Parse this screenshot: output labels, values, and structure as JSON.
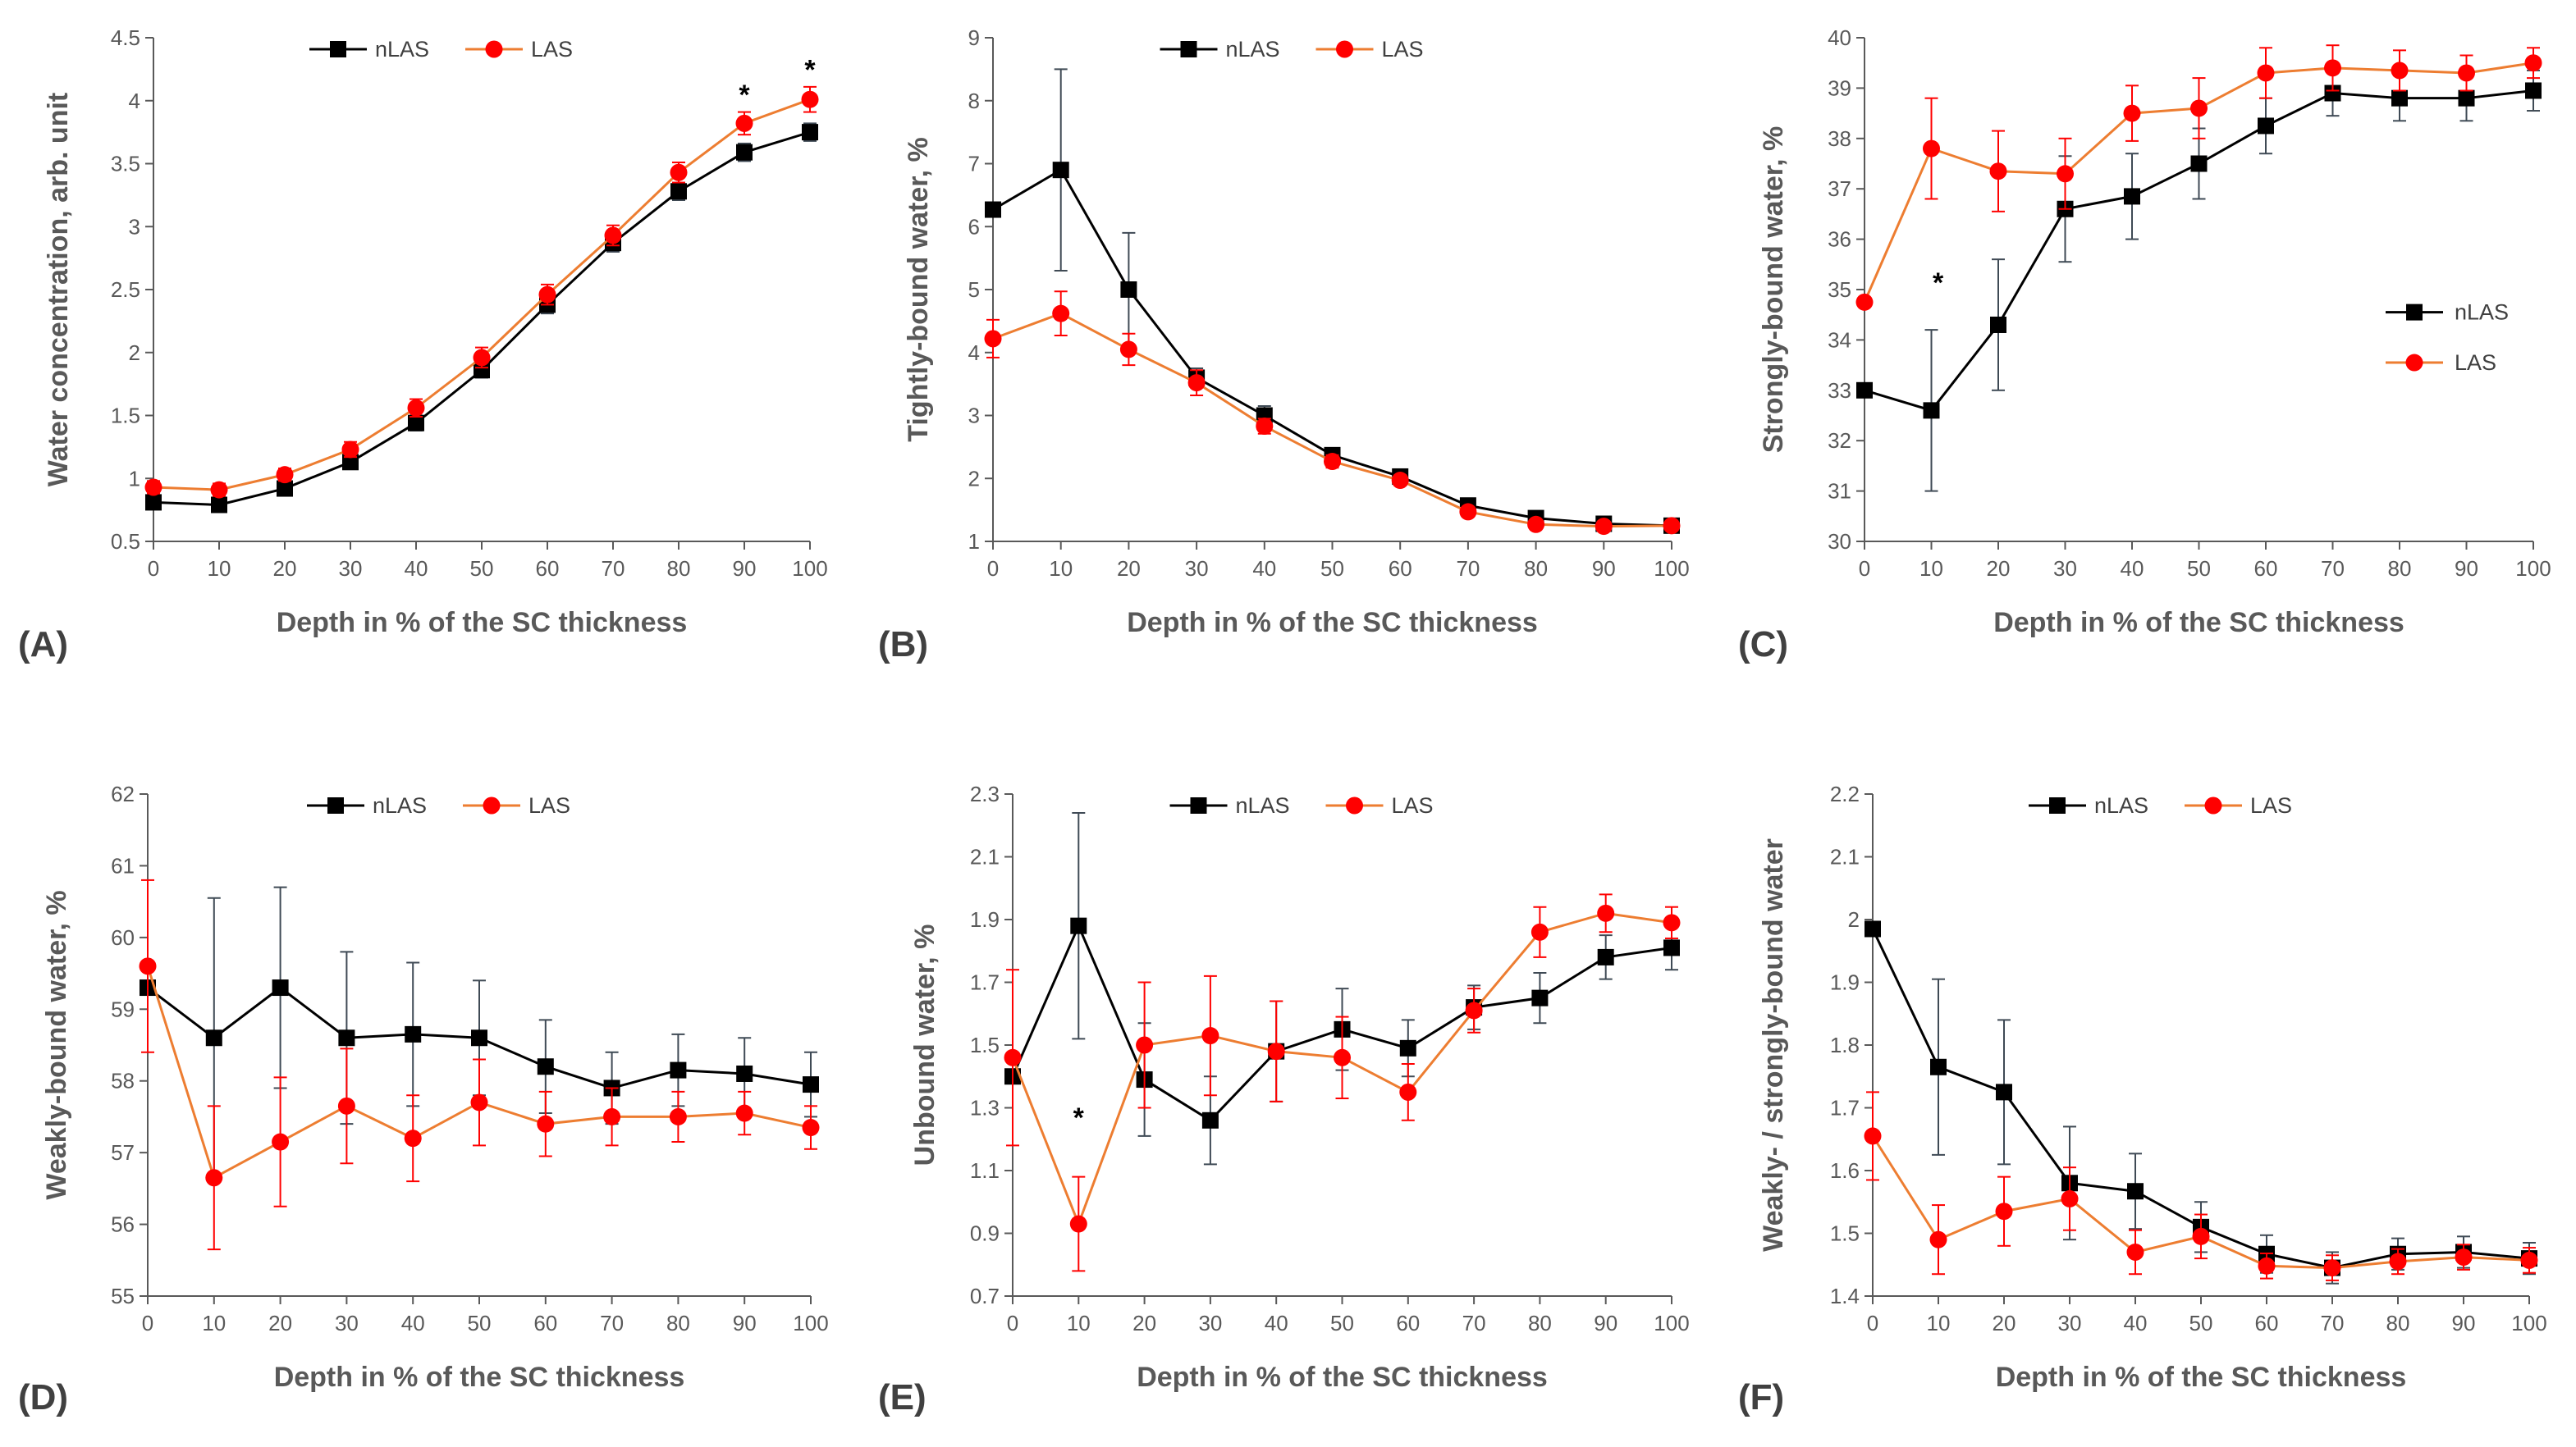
{
  "chart_data": [
    {
      "id": "A",
      "type": "line",
      "panel_label": "(A)",
      "xlabel": "Depth in % of the SC thickness",
      "ylabel": "Water concentration, arb. unit",
      "x": [
        0,
        10,
        20,
        30,
        40,
        50,
        60,
        70,
        80,
        90,
        100
      ],
      "xlim": [
        0,
        100
      ],
      "ylim": [
        0.5,
        4.5
      ],
      "ystep": 0.5,
      "ytick_labels": [
        "0.5",
        "1",
        "1.5",
        "2",
        "2.5",
        "3",
        "3.5",
        "4",
        "4.5"
      ],
      "legend": "top-center",
      "series": [
        {
          "name": "nLAS",
          "values": [
            0.81,
            0.79,
            0.92,
            1.13,
            1.44,
            1.86,
            2.38,
            2.87,
            3.28,
            3.59,
            3.75
          ],
          "errors": [
            0.05,
            0.05,
            0.05,
            0.05,
            0.06,
            0.06,
            0.07,
            0.07,
            0.07,
            0.07,
            0.07
          ]
        },
        {
          "name": "LAS",
          "values": [
            0.93,
            0.91,
            1.03,
            1.23,
            1.56,
            1.96,
            2.46,
            2.93,
            3.43,
            3.82,
            4.01
          ],
          "errors": [
            0.05,
            0.05,
            0.05,
            0.06,
            0.07,
            0.08,
            0.08,
            0.08,
            0.08,
            0.09,
            0.1
          ]
        }
      ],
      "annotations": [
        {
          "x": 90,
          "y": 4.05,
          "text": "*"
        },
        {
          "x": 100,
          "y": 4.25,
          "text": "*"
        }
      ]
    },
    {
      "id": "B",
      "type": "line",
      "panel_label": "(B)",
      "xlabel": "Depth in % of the SC thickness",
      "ylabel": "Tightly-bound water, %",
      "x": [
        0,
        10,
        20,
        30,
        40,
        50,
        60,
        70,
        80,
        90,
        100
      ],
      "xlim": [
        0,
        100
      ],
      "ylim": [
        1,
        9
      ],
      "ystep": 1,
      "ytick_labels": [
        "1",
        "2",
        "3",
        "4",
        "5",
        "6",
        "7",
        "8",
        "9"
      ],
      "legend": "top-center",
      "series": [
        {
          "name": "nLAS",
          "values": [
            6.27,
            6.9,
            5.0,
            3.6,
            3.0,
            2.37,
            2.03,
            1.57,
            1.37,
            1.28,
            1.25
          ],
          "errors": [
            0,
            1.6,
            0.9,
            0.15,
            0.15,
            0.1,
            0.08,
            0.05,
            0.05,
            0.03,
            0.03
          ]
        },
        {
          "name": "LAS",
          "values": [
            4.22,
            4.62,
            4.05,
            3.52,
            2.83,
            2.27,
            1.97,
            1.47,
            1.27,
            1.24,
            1.25
          ],
          "errors": [
            0.3,
            0.35,
            0.25,
            0.2,
            0.12,
            0.1,
            0.08,
            0.05,
            0.04,
            0.03,
            0.03
          ]
        }
      ],
      "annotations": []
    },
    {
      "id": "C",
      "type": "line",
      "panel_label": "(C)",
      "xlabel": "Depth in % of the SC thickness",
      "ylabel": "Strongly-bound water, %",
      "x": [
        0,
        10,
        20,
        30,
        40,
        50,
        60,
        70,
        80,
        90,
        100
      ],
      "xlim": [
        0,
        100
      ],
      "ylim": [
        30,
        40
      ],
      "ystep": 1,
      "ytick_labels": [
        "30",
        "31",
        "32",
        "33",
        "34",
        "35",
        "36",
        "37",
        "38",
        "39",
        "40"
      ],
      "legend": "right",
      "series": [
        {
          "name": "nLAS",
          "values": [
            33.0,
            32.6,
            34.3,
            36.6,
            36.85,
            37.5,
            38.25,
            38.9,
            38.8,
            38.8,
            38.95
          ],
          "errors": [
            0,
            1.6,
            1.3,
            1.05,
            0.85,
            0.7,
            0.55,
            0.45,
            0.45,
            0.45,
            0.4
          ]
        },
        {
          "name": "LAS",
          "values": [
            34.75,
            37.8,
            37.35,
            37.3,
            38.5,
            38.6,
            39.3,
            39.4,
            39.35,
            39.3,
            39.5
          ],
          "errors": [
            0,
            1.0,
            0.8,
            0.7,
            0.55,
            0.6,
            0.5,
            0.45,
            0.4,
            0.35,
            0.3
          ]
        }
      ],
      "annotations": [
        {
          "x": 11,
          "y": 35.15,
          "text": "*"
        }
      ]
    },
    {
      "id": "D",
      "type": "line",
      "panel_label": "(D)",
      "xlabel": "Depth in % of the SC thickness",
      "ylabel": "Weakly-bound water, %",
      "x": [
        0,
        10,
        20,
        30,
        40,
        50,
        60,
        70,
        80,
        90,
        100
      ],
      "xlim": [
        0,
        100
      ],
      "ylim": [
        55,
        62
      ],
      "ystep": 1,
      "ytick_labels": [
        "55",
        "56",
        "57",
        "58",
        "59",
        "60",
        "61",
        "62"
      ],
      "legend": "top-center",
      "series": [
        {
          "name": "nLAS",
          "values": [
            59.3,
            58.6,
            59.3,
            58.6,
            58.65,
            58.6,
            58.2,
            57.9,
            58.15,
            58.1,
            57.95
          ],
          "errors": [
            0,
            1.95,
            1.4,
            1.2,
            1.0,
            0.8,
            0.65,
            0.5,
            0.5,
            0.5,
            0.45
          ]
        },
        {
          "name": "LAS",
          "values": [
            59.6,
            56.65,
            57.15,
            57.65,
            57.2,
            57.7,
            57.4,
            57.5,
            57.5,
            57.55,
            57.35
          ],
          "errors": [
            1.2,
            1.0,
            0.9,
            0.8,
            0.6,
            0.6,
            0.45,
            0.4,
            0.35,
            0.3,
            0.3
          ]
        }
      ],
      "annotations": []
    },
    {
      "id": "E",
      "type": "line",
      "panel_label": "(E)",
      "xlabel": "Depth in % of the SC thickness",
      "ylabel": "Unbound water, %",
      "x": [
        0,
        10,
        20,
        30,
        40,
        50,
        60,
        70,
        80,
        90,
        100
      ],
      "xlim": [
        0,
        100
      ],
      "ylim": [
        0.7,
        2.3
      ],
      "ystep": 0.2,
      "ytick_labels": [
        "0.7",
        "0.9",
        "1.1",
        "1.3",
        "1.5",
        "1.7",
        "1.9",
        "2.1",
        "2.3"
      ],
      "legend": "top-center",
      "series": [
        {
          "name": "nLAS",
          "values": [
            1.4,
            1.88,
            1.39,
            1.26,
            1.48,
            1.55,
            1.49,
            1.62,
            1.65,
            1.78,
            1.81
          ],
          "errors": [
            0,
            0.36,
            0.18,
            0.14,
            0.16,
            0.13,
            0.09,
            0.07,
            0.08,
            0.07,
            0.07
          ]
        },
        {
          "name": "LAS",
          "values": [
            1.46,
            0.93,
            1.5,
            1.53,
            1.48,
            1.46,
            1.35,
            1.61,
            1.86,
            1.92,
            1.89
          ],
          "errors": [
            0.28,
            0.15,
            0.2,
            0.19,
            0.16,
            0.13,
            0.09,
            0.07,
            0.08,
            0.06,
            0.05
          ]
        }
      ],
      "annotations": [
        {
          "x": 10,
          "y": 1.27,
          "text": "*"
        }
      ]
    },
    {
      "id": "F",
      "type": "line",
      "panel_label": "(F)",
      "xlabel": "Depth in % of the SC thickness",
      "ylabel": "Weakly- / strongly-bound water",
      "x": [
        0,
        10,
        20,
        30,
        40,
        50,
        60,
        70,
        80,
        90,
        100
      ],
      "xlim": [
        0,
        100
      ],
      "ylim": [
        1.4,
        2.2
      ],
      "ystep": 0.1,
      "ytick_labels": [
        "1.4",
        "1.5",
        "1.6",
        "1.7",
        "1.8",
        "1.9",
        "2",
        "2.1",
        "2.2"
      ],
      "legend": "top-center",
      "series": [
        {
          "name": "nLAS",
          "values": [
            1.985,
            1.765,
            1.725,
            1.58,
            1.567,
            1.51,
            1.467,
            1.445,
            1.467,
            1.47,
            1.46
          ],
          "errors": [
            0,
            0.14,
            0.115,
            0.09,
            0.06,
            0.04,
            0.03,
            0.025,
            0.025,
            0.025,
            0.025
          ]
        },
        {
          "name": "LAS",
          "values": [
            1.655,
            1.49,
            1.535,
            1.555,
            1.47,
            1.495,
            1.448,
            1.445,
            1.455,
            1.462,
            1.457
          ],
          "errors": [
            0.07,
            0.055,
            0.055,
            0.05,
            0.035,
            0.035,
            0.02,
            0.02,
            0.02,
            0.02,
            0.02
          ]
        }
      ],
      "annotations": []
    }
  ],
  "style": {
    "nLAS_color": "#000000",
    "LAS_color": "#ed7d31",
    "LAS_marker_color": "#ff0000",
    "axis_color": "#595959"
  }
}
